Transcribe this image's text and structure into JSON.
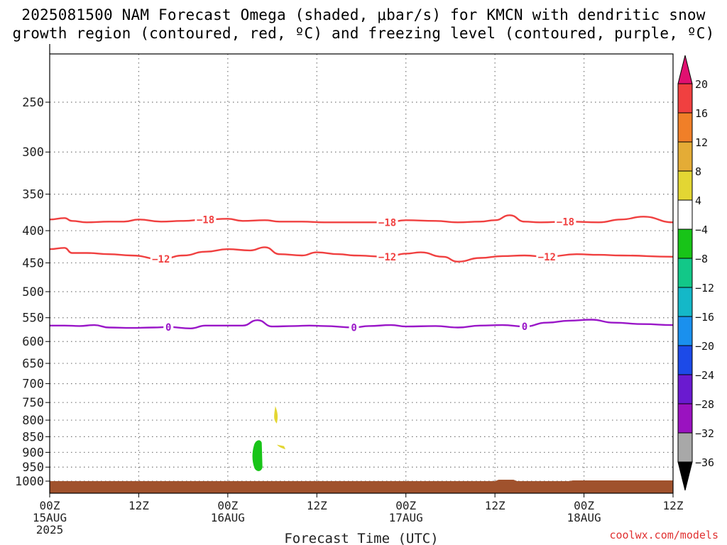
{
  "title_line1": "2025081500 NAM Forecast Omega (shaded, μbar/s) for KMCN with dendritic snow",
  "title_line2": "growth region (contoured, red, ºC) and freezing level (contoured, purple, ºC)",
  "credit": "coolwx.com/models",
  "chart_data": {
    "type": "time-height cross section",
    "title": "2025081500 NAM Forecast Omega (shaded, μbar/s) for KMCN with dendritic snow growth region (contoured, red, ºC) and freezing level (contoured, purple, ºC)",
    "xlabel": "Forecast Time (UTC)",
    "ylabel": "",
    "x_ticks": [
      {
        "hour": 0,
        "label": "00Z",
        "sub": "15AUG",
        "sub2": "2025"
      },
      {
        "hour": 12,
        "label": "12Z",
        "sub": "",
        "sub2": ""
      },
      {
        "hour": 24,
        "label": "00Z",
        "sub": "16AUG",
        "sub2": ""
      },
      {
        "hour": 36,
        "label": "12Z",
        "sub": "",
        "sub2": ""
      },
      {
        "hour": 48,
        "label": "00Z",
        "sub": "17AUG",
        "sub2": ""
      },
      {
        "hour": 60,
        "label": "12Z",
        "sub": "",
        "sub2": ""
      },
      {
        "hour": 72,
        "label": "00Z",
        "sub": "18AUG",
        "sub2": ""
      },
      {
        "hour": 84,
        "label": "12Z",
        "sub": "",
        "sub2": ""
      }
    ],
    "xlim": [
      0,
      84
    ],
    "y_ticks": [
      250,
      300,
      350,
      400,
      450,
      500,
      550,
      600,
      650,
      700,
      750,
      800,
      850,
      900,
      950,
      1000
    ],
    "ylim_hpa": [
      200,
      1050
    ],
    "y_scale": "log-pressure (reversed)",
    "grid": true,
    "contours": [
      {
        "name": "-18",
        "kind": "dendritic",
        "color": "#f04040",
        "label_hours": [
          21,
          45.5,
          69.5
        ],
        "points": [
          [
            0,
            384
          ],
          [
            2,
            382
          ],
          [
            3,
            386
          ],
          [
            5,
            388
          ],
          [
            8,
            387
          ],
          [
            10,
            387
          ],
          [
            12,
            384
          ],
          [
            15,
            387
          ],
          [
            18,
            386
          ],
          [
            21,
            384
          ],
          [
            24,
            383
          ],
          [
            26,
            386
          ],
          [
            29,
            385
          ],
          [
            31,
            387
          ],
          [
            34,
            387
          ],
          [
            37,
            388
          ],
          [
            41,
            388
          ],
          [
            45.5,
            388
          ],
          [
            48,
            385
          ],
          [
            52,
            386
          ],
          [
            55,
            388
          ],
          [
            58,
            387
          ],
          [
            60,
            385
          ],
          [
            62,
            378
          ],
          [
            64,
            387
          ],
          [
            66,
            388
          ],
          [
            70,
            387
          ],
          [
            74,
            388
          ],
          [
            77,
            384
          ],
          [
            80,
            380
          ],
          [
            84,
            388
          ]
        ]
      },
      {
        "name": "-12",
        "kind": "dendritic",
        "color": "#f04040",
        "label_hours": [
          15,
          45.5,
          67
        ],
        "points": [
          [
            0,
            428
          ],
          [
            2,
            426
          ],
          [
            3,
            434
          ],
          [
            5,
            434
          ],
          [
            8,
            436
          ],
          [
            11,
            438
          ],
          [
            15,
            444
          ],
          [
            18,
            438
          ],
          [
            21,
            432
          ],
          [
            24,
            428
          ],
          [
            27,
            430
          ],
          [
            29,
            425
          ],
          [
            31,
            436
          ],
          [
            34,
            438
          ],
          [
            36,
            433
          ],
          [
            39,
            436
          ],
          [
            41,
            438
          ],
          [
            45.5,
            440
          ],
          [
            48,
            435
          ],
          [
            50,
            433
          ],
          [
            53,
            440
          ],
          [
            55,
            448
          ],
          [
            58,
            442
          ],
          [
            61,
            439
          ],
          [
            64,
            438
          ],
          [
            67,
            440
          ],
          [
            71,
            436
          ],
          [
            74,
            437
          ],
          [
            77,
            438
          ],
          [
            84,
            440
          ]
        ]
      },
      {
        "name": "0",
        "kind": "freezing",
        "color": "#9a17c8",
        "label_hours": [
          16,
          41,
          64
        ],
        "points": [
          [
            0,
            566
          ],
          [
            2,
            566
          ],
          [
            4,
            567
          ],
          [
            6,
            565
          ],
          [
            8,
            570
          ],
          [
            11,
            571
          ],
          [
            14,
            570
          ],
          [
            16,
            569
          ],
          [
            19,
            572
          ],
          [
            21,
            566
          ],
          [
            24,
            566
          ],
          [
            26,
            566
          ],
          [
            28,
            555
          ],
          [
            30,
            568
          ],
          [
            33,
            567
          ],
          [
            35,
            566
          ],
          [
            37,
            567
          ],
          [
            41,
            570
          ],
          [
            43,
            567
          ],
          [
            46,
            565
          ],
          [
            48,
            568
          ],
          [
            52,
            567
          ],
          [
            55,
            570
          ],
          [
            58,
            566
          ],
          [
            61,
            565
          ],
          [
            64,
            568
          ],
          [
            67,
            560
          ],
          [
            70,
            556
          ],
          [
            73,
            554
          ],
          [
            76,
            560
          ],
          [
            80,
            563
          ],
          [
            84,
            565
          ]
        ]
      }
    ],
    "omega_shading": [
      {
        "value_range": [
          4,
          8
        ],
        "color": "#e3d633",
        "at_hour": 30.5,
        "pressure_range": [
          760,
          810
        ]
      },
      {
        "value_range": [
          4,
          8
        ],
        "color": "#e3d633",
        "at_hour": 31,
        "pressure_range": [
          875,
          890
        ]
      },
      {
        "value_range": [
          -8,
          -4
        ],
        "color": "#18c418",
        "at_hour": 28,
        "pressure_range": [
          860,
          965
        ]
      }
    ],
    "terrain": {
      "color": "#a0522d",
      "top_hpa": 1000
    },
    "colorbar": {
      "ticks": [
        "20",
        "16",
        "12",
        "8",
        "4",
        "−4",
        "−8",
        "−12",
        "−16",
        "−20",
        "−24",
        "−28",
        "−32",
        "−36"
      ],
      "colors": [
        "#f04040",
        "#f07f28",
        "#e4ac36",
        "#e3d633",
        "#ffffff",
        "#18c418",
        "#12c888",
        "#14b8c8",
        "#1a90ee",
        "#1c4ae8",
        "#6a1ad0",
        "#9a12c0",
        "#a8a8a8"
      ],
      "top_arrow": "#e01070",
      "bottom_arrow": "#000000"
    }
  }
}
